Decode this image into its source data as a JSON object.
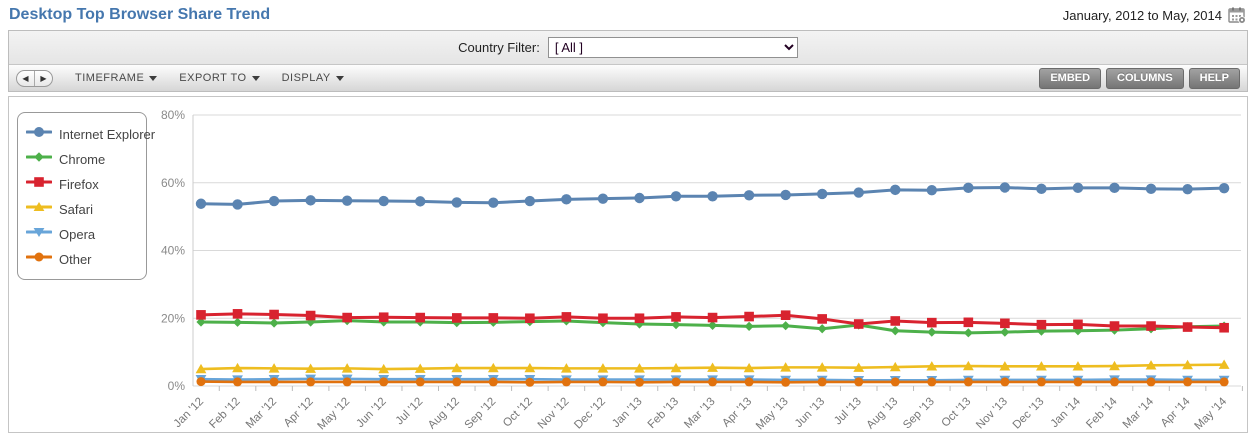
{
  "header": {
    "title": "Desktop Top Browser Share Trend",
    "date_range": "January, 2012 to May, 2014"
  },
  "filter_bar": {
    "label": "Country Filter:",
    "selected_option": "[ All ]"
  },
  "toolbar": {
    "menus": [
      {
        "label": "TIMEFRAME"
      },
      {
        "label": "EXPORT TO"
      },
      {
        "label": "DISPLAY"
      }
    ],
    "buttons": [
      {
        "label": "EMBED"
      },
      {
        "label": "COLUMNS"
      },
      {
        "label": "HELP"
      }
    ]
  },
  "chart_data": {
    "type": "line",
    "title": "Desktop Top Browser Share Trend",
    "xlabel": "",
    "ylabel": "",
    "ylim": [
      0,
      80
    ],
    "yticks": [
      0,
      20,
      40,
      60,
      80
    ],
    "ytick_suffix": "%",
    "grid": true,
    "legend_position": "top-left",
    "categories": [
      "Jan '12",
      "Feb '12",
      "Mar '12",
      "Apr '12",
      "May '12",
      "Jun '12",
      "Jul '12",
      "Aug '12",
      "Sep '12",
      "Oct '12",
      "Nov '12",
      "Dec '12",
      "Jan '13",
      "Feb '13",
      "Mar '13",
      "Apr '13",
      "May '13",
      "Jun '13",
      "Jul '13",
      "Aug '13",
      "Sep '13",
      "Oct '13",
      "Nov '13",
      "Dec '13",
      "Jan '14",
      "Feb '14",
      "Mar '14",
      "Apr '14",
      "May '14"
    ],
    "series": [
      {
        "name": "Internet Explorer",
        "color": "#5b84b1",
        "marker": "circle",
        "values": [
          53.8,
          53.6,
          54.6,
          54.8,
          54.7,
          54.6,
          54.5,
          54.2,
          54.1,
          54.6,
          55.1,
          55.3,
          55.5,
          56.0,
          56.0,
          56.3,
          56.4,
          56.7,
          57.1,
          57.9,
          57.8,
          58.5,
          58.6,
          58.2,
          58.5,
          58.5,
          58.2,
          58.1,
          58.4
        ]
      },
      {
        "name": "Chrome",
        "color": "#4db04a",
        "marker": "diamond",
        "values": [
          18.9,
          18.8,
          18.6,
          18.9,
          19.3,
          18.9,
          18.9,
          18.7,
          18.8,
          19.0,
          19.2,
          18.7,
          18.3,
          18.1,
          17.9,
          17.6,
          17.8,
          16.9,
          18.0,
          16.3,
          15.9,
          15.7,
          15.9,
          16.2,
          16.3,
          16.5,
          16.9,
          17.5,
          17.7
        ]
      },
      {
        "name": "Firefox",
        "color": "#d8232f",
        "marker": "square",
        "values": [
          21.0,
          21.3,
          21.1,
          20.8,
          20.2,
          20.3,
          20.2,
          20.1,
          20.1,
          20.0,
          20.4,
          20.0,
          20.0,
          20.4,
          20.2,
          20.5,
          20.9,
          19.8,
          18.3,
          19.2,
          18.7,
          18.8,
          18.5,
          18.1,
          18.2,
          17.7,
          17.7,
          17.4,
          17.2
        ]
      },
      {
        "name": "Safari",
        "color": "#eebd20",
        "marker": "triangle-up",
        "values": [
          5.0,
          5.3,
          5.2,
          5.1,
          5.2,
          5.0,
          5.1,
          5.3,
          5.3,
          5.3,
          5.2,
          5.2,
          5.2,
          5.3,
          5.4,
          5.3,
          5.5,
          5.5,
          5.4,
          5.6,
          5.8,
          5.9,
          5.8,
          5.8,
          5.8,
          5.9,
          6.1,
          6.2,
          6.3
        ]
      },
      {
        "name": "Opera",
        "color": "#68a5d9",
        "marker": "triangle-down",
        "values": [
          2.0,
          1.9,
          2.0,
          2.1,
          2.1,
          2.0,
          2.0,
          2.0,
          2.0,
          2.0,
          1.9,
          1.9,
          1.9,
          1.9,
          1.9,
          1.9,
          1.8,
          1.8,
          1.7,
          1.7,
          1.7,
          1.8,
          1.8,
          1.8,
          1.8,
          1.9,
          1.9,
          1.8,
          1.8
        ]
      },
      {
        "name": "Other",
        "color": "#e1720e",
        "marker": "circle-small",
        "values": [
          1.3,
          1.2,
          1.2,
          1.2,
          1.2,
          1.2,
          1.2,
          1.2,
          1.2,
          1.1,
          1.2,
          1.2,
          1.1,
          1.2,
          1.2,
          1.2,
          1.1,
          1.2,
          1.2,
          1.2,
          1.2,
          1.2,
          1.2,
          1.2,
          1.2,
          1.2,
          1.2,
          1.2,
          1.2
        ]
      }
    ]
  }
}
